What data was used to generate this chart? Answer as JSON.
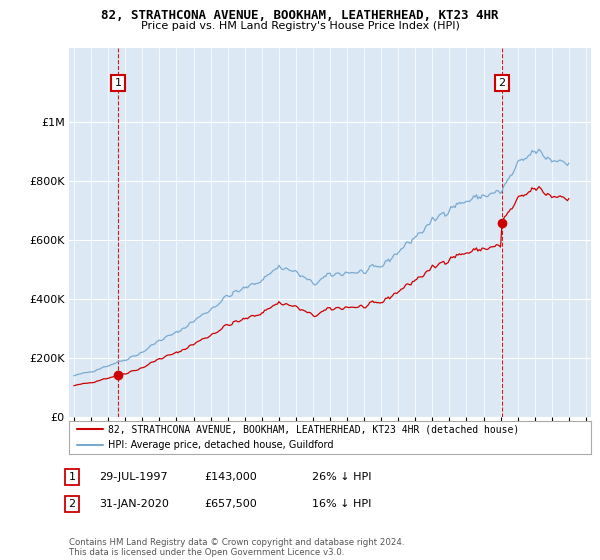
{
  "title": "82, STRATHCONA AVENUE, BOOKHAM, LEATHERHEAD, KT23 4HR",
  "subtitle": "Price paid vs. HM Land Registry's House Price Index (HPI)",
  "legend_line1": "82, STRATHCONA AVENUE, BOOKHAM, LEATHERHEAD, KT23 4HR (detached house)",
  "legend_line2": "HPI: Average price, detached house, Guildford",
  "line1_color": "#cc0000",
  "line2_color": "#7aaad0",
  "point1_x": 1997.58,
  "point1_y": 143000,
  "point2_x": 2020.08,
  "point2_y": 657500,
  "ratio1": 0.74,
  "ratio2": 0.84,
  "ylim": [
    0,
    1250000
  ],
  "yticks": [
    0,
    200000,
    400000,
    600000,
    800000,
    1000000
  ],
  "xlim_left": 1994.7,
  "xlim_right": 2025.3,
  "background_color": "#ffffff",
  "plot_bg_color": "#dce9f5",
  "grid_color": "#ffffff",
  "footer": "Contains HM Land Registry data © Crown copyright and database right 2024.\nThis data is licensed under the Open Government Licence v3.0."
}
